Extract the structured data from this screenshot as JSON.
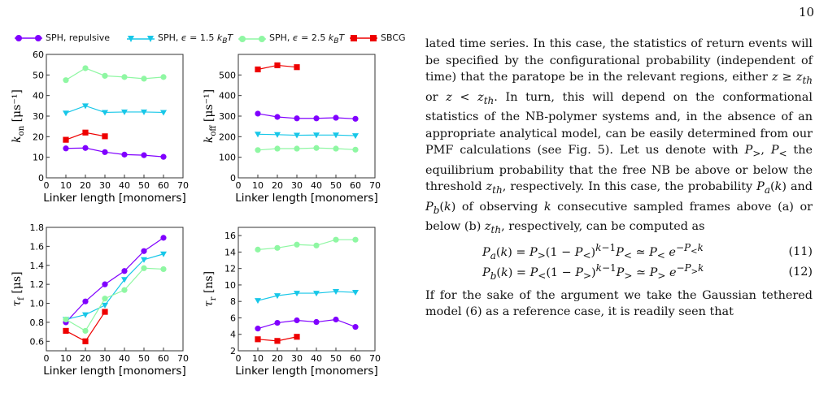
{
  "page_number": "10",
  "legend": [
    {
      "name": "SPH, repulsive",
      "color": "#8000ff",
      "marker": "circle"
    },
    {
      "name": "SPH, ε = 1.5 k_B T",
      "color": "#17c7e8",
      "marker": "triangle"
    },
    {
      "name": "SPH, ε = 2.5 k_B T",
      "color": "#8ff7a3",
      "marker": "circle"
    },
    {
      "name": "SBCG",
      "color": "#ee0000",
      "marker": "square"
    }
  ],
  "chart_data": [
    {
      "type": "line",
      "ylabel": "k_on [μs⁻¹]",
      "xlabel": "Linker length [monomers]",
      "xlim": [
        0,
        70
      ],
      "ylim": [
        0,
        60
      ],
      "xticks": [
        0,
        10,
        20,
        30,
        40,
        50,
        60,
        70
      ],
      "yticks": [
        0,
        10,
        20,
        30,
        40,
        50,
        60
      ],
      "series": [
        {
          "name": "SPH, repulsive",
          "x": [
            10,
            20,
            30,
            40,
            50,
            60
          ],
          "y": [
            14.3,
            14.5,
            12.5,
            11.3,
            11.0,
            10.2
          ]
        },
        {
          "name": "SPH, ε = 1.5 k_B T",
          "x": [
            10,
            20,
            30,
            40,
            50,
            60
          ],
          "y": [
            31.5,
            35.0,
            31.8,
            32.0,
            32.0,
            31.8
          ]
        },
        {
          "name": "SPH, ε = 2.5 k_B T",
          "x": [
            10,
            20,
            30,
            40,
            50,
            60
          ],
          "y": [
            47.5,
            53.3,
            49.6,
            49.0,
            48.2,
            49.0
          ]
        },
        {
          "name": "SBCG",
          "x": [
            10,
            20,
            30
          ],
          "y": [
            18.5,
            22.0,
            20.2
          ]
        }
      ]
    },
    {
      "type": "line",
      "ylabel": "k_off [μs⁻¹]",
      "xlabel": "Linker length [monomers]",
      "xlim": [
        0,
        70
      ],
      "ylim": [
        0,
        600
      ],
      "xticks": [
        0,
        10,
        20,
        30,
        40,
        50,
        60,
        70
      ],
      "yticks": [
        0,
        100,
        200,
        300,
        400,
        500
      ],
      "series": [
        {
          "name": "SPH, repulsive",
          "x": [
            10,
            20,
            30,
            40,
            50,
            60
          ],
          "y": [
            312,
            296,
            289,
            289,
            292,
            287
          ]
        },
        {
          "name": "SPH, ε = 1.5 k_B T",
          "x": [
            10,
            20,
            30,
            40,
            50,
            60
          ],
          "y": [
            212,
            210,
            207,
            208,
            208,
            205
          ]
        },
        {
          "name": "SPH, ε = 2.5 k_B T",
          "x": [
            10,
            20,
            30,
            40,
            50,
            60
          ],
          "y": [
            135,
            142,
            142,
            145,
            142,
            137
          ]
        },
        {
          "name": "SBCG",
          "x": [
            10,
            20,
            30
          ],
          "y": [
            527,
            547,
            538
          ]
        }
      ]
    },
    {
      "type": "line",
      "ylabel": "τ_f [μs]",
      "xlabel": "Linker length [monomers]",
      "xlim": [
        0,
        70
      ],
      "ylim": [
        0.5,
        1.8
      ],
      "xticks": [
        0,
        10,
        20,
        30,
        40,
        50,
        60,
        70
      ],
      "yticks": [
        0.6,
        0.8,
        1.0,
        1.2,
        1.4,
        1.6,
        1.8
      ],
      "series": [
        {
          "name": "SPH, repulsive",
          "x": [
            10,
            20,
            30,
            40,
            50,
            60
          ],
          "y": [
            0.8,
            1.02,
            1.2,
            1.34,
            1.55,
            1.69
          ]
        },
        {
          "name": "SPH, ε = 1.5 k_B T",
          "x": [
            10,
            20,
            30,
            40,
            50,
            60
          ],
          "y": [
            0.83,
            0.88,
            0.98,
            1.25,
            1.46,
            1.52
          ]
        },
        {
          "name": "SPH, ε = 2.5 k_B T",
          "x": [
            10,
            20,
            30,
            40,
            50,
            60
          ],
          "y": [
            0.83,
            0.71,
            1.05,
            1.14,
            1.37,
            1.36
          ]
        },
        {
          "name": "SBCG",
          "x": [
            10,
            20,
            30
          ],
          "y": [
            0.71,
            0.6,
            0.91
          ]
        }
      ]
    },
    {
      "type": "line",
      "ylabel": "τ_r [ns]",
      "xlabel": "Linker length [monomers]",
      "xlim": [
        0,
        70
      ],
      "ylim": [
        2,
        17
      ],
      "xticks": [
        0,
        10,
        20,
        30,
        40,
        50,
        60,
        70
      ],
      "yticks": [
        2,
        4,
        6,
        8,
        10,
        12,
        14,
        16
      ],
      "series": [
        {
          "name": "SPH, repulsive",
          "x": [
            10,
            20,
            30,
            40,
            50,
            60
          ],
          "y": [
            4.7,
            5.4,
            5.7,
            5.5,
            5.8,
            4.9
          ]
        },
        {
          "name": "SPH, ε = 1.5 k_B T",
          "x": [
            10,
            20,
            30,
            40,
            50,
            60
          ],
          "y": [
            8.1,
            8.7,
            9.0,
            9.0,
            9.2,
            9.1
          ]
        },
        {
          "name": "SPH, ε = 2.5 k_B T",
          "x": [
            10,
            20,
            30,
            40,
            50,
            60
          ],
          "y": [
            14.3,
            14.5,
            14.9,
            14.8,
            15.5,
            15.5
          ]
        },
        {
          "name": "SBCG",
          "x": [
            10,
            20,
            30
          ],
          "y": [
            3.4,
            3.2,
            3.7
          ]
        }
      ]
    }
  ],
  "text": {
    "p1_a": "lated time series.  In this case, the statistics of return events will be specified by the configurational probability (independent of time) that the paratope be in the relevant regions, either ",
    "p1_cond1": "z ≥ z",
    "p1_or": " or ",
    "p1_cond2": "z < z",
    "p1_b": ". In turn, this will depend on the conformational statistics of the NB-polymer systems and, in the absence of an appropriate analytical model, can be easily determined from our PMF calculations (see Fig. 5). Let us denote with ",
    "p_gt": "P",
    "p1_comma": ", ",
    "p_lt": "P",
    "p1_c": " the equilibrium probability that the free NB be above or below the threshold ",
    "p1_zth": "z",
    "p1_d": ", respectively. In this case, the probability ",
    "p1_pa": "P",
    "p1_and": " and ",
    "p1_pb": "P",
    "p1_e": " of observing ",
    "p1_k": "k",
    "p1_f": " consecutive sampled frames above (a) or below (b) ",
    "p1_zth2": "z",
    "p1_g": ", respectively, can be computed as",
    "eq11": "P_a(k) = P_>(1 − P_<)^{k−1} P_< ≃ P_< e^{−P_< k}",
    "eq11_num": "(11)",
    "eq12": "P_b(k) = P_<(1 − P_>)^{k−1} P_> ≃ P_> e^{−P_> k}",
    "eq12_num": "(12)",
    "p2": "If for the sake of the argument we take the Gaussian tethered model (6) as a reference case, it is readily seen that"
  }
}
